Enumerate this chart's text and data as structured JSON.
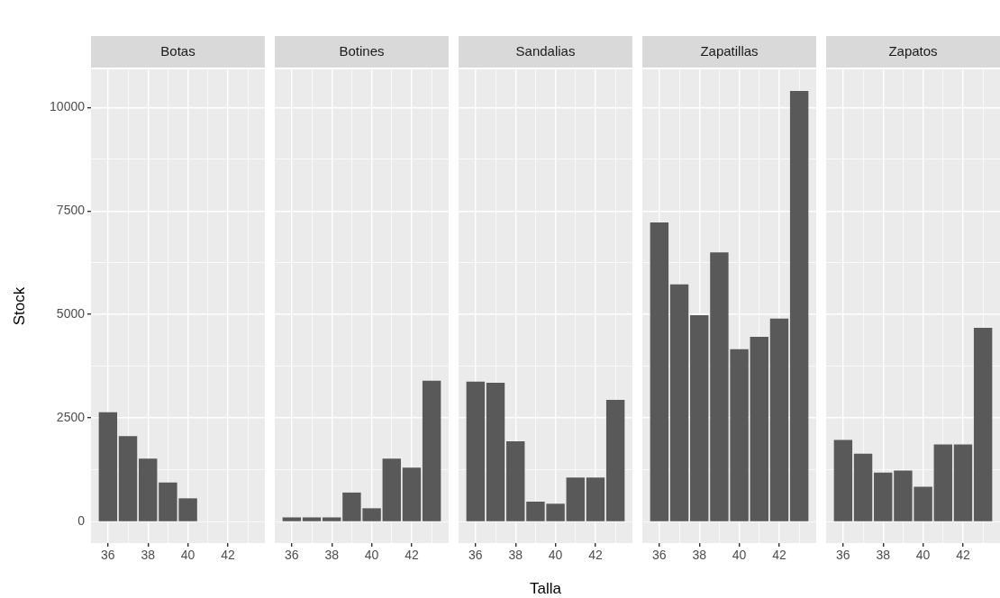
{
  "chart_data": [
    {
      "type": "bar",
      "title": "Botas",
      "ylabel": "Stock",
      "x": [
        36,
        37,
        38,
        39,
        40
      ],
      "values": [
        2640,
        2060,
        1520,
        940,
        560
      ],
      "color": "#595959",
      "xlim": [
        35.15,
        43.85
      ],
      "xticks": [
        36,
        {
          "value": 37,
          "label": null
        },
        38,
        {
          "value": 39,
          "label": null
        },
        40,
        {
          "value": 41,
          "label": null
        },
        42,
        {
          "value": 43,
          "label": null
        }
      ],
      "ylim": [
        -520,
        10920
      ],
      "yticks": [
        0,
        {
          "value": 1250,
          "label": null
        },
        2500,
        {
          "value": 3750,
          "label": null
        },
        5000,
        {
          "value": 6250,
          "label": null
        },
        7500,
        {
          "value": 8750,
          "label": null
        },
        10000
      ],
      "grid": true
    },
    {
      "type": "bar",
      "title": "Botines",
      "x": [
        36,
        37,
        38,
        39,
        40,
        41,
        42,
        43
      ],
      "values": [
        100,
        100,
        100,
        700,
        320,
        1520,
        1300,
        3400
      ],
      "color": "#595959",
      "xlim": [
        35.15,
        43.85
      ],
      "xticks": [
        36,
        {
          "value": 37,
          "label": null
        },
        38,
        {
          "value": 39,
          "label": null
        },
        40,
        {
          "value": 41,
          "label": null
        },
        42,
        {
          "value": 43,
          "label": null
        }
      ],
      "ylim": [
        -520,
        10920
      ],
      "yticks": [
        0,
        {
          "value": 1250,
          "label": null
        },
        2500,
        {
          "value": 3750,
          "label": null
        },
        5000,
        {
          "value": 6250,
          "label": null
        },
        7500,
        {
          "value": 8750,
          "label": null
        },
        10000
      ],
      "grid": true,
      "tick_labels": "x"
    },
    {
      "type": "bar",
      "title": "Sandalias",
      "xlabel": "Talla",
      "x": [
        36,
        37,
        38,
        39,
        40,
        41,
        42,
        43
      ],
      "values": [
        3380,
        3350,
        1940,
        480,
        430,
        1060,
        1060,
        2940
      ],
      "color": "#595959",
      "xlim": [
        35.15,
        43.85
      ],
      "xticks": [
        36,
        {
          "value": 37,
          "label": null
        },
        38,
        {
          "value": 39,
          "label": null
        },
        40,
        {
          "value": 41,
          "label": null
        },
        42,
        {
          "value": 43,
          "label": null
        }
      ],
      "ylim": [
        -520,
        10920
      ],
      "yticks": [
        0,
        {
          "value": 1250,
          "label": null
        },
        2500,
        {
          "value": 3750,
          "label": null
        },
        5000,
        {
          "value": 6250,
          "label": null
        },
        7500,
        {
          "value": 8750,
          "label": null
        },
        10000
      ],
      "grid": true,
      "tick_labels": "x"
    },
    {
      "type": "bar",
      "title": "Zapatillas",
      "x": [
        36,
        37,
        38,
        39,
        40,
        41,
        42,
        43
      ],
      "values": [
        7220,
        5730,
        4980,
        6500,
        4160,
        4460,
        4900,
        10400
      ],
      "color": "#595959",
      "xlim": [
        35.15,
        43.85
      ],
      "xticks": [
        36,
        {
          "value": 37,
          "label": null
        },
        38,
        {
          "value": 39,
          "label": null
        },
        40,
        {
          "value": 41,
          "label": null
        },
        42,
        {
          "value": 43,
          "label": null
        }
      ],
      "ylim": [
        -520,
        10920
      ],
      "yticks": [
        0,
        {
          "value": 1250,
          "label": null
        },
        2500,
        {
          "value": 3750,
          "label": null
        },
        5000,
        {
          "value": 6250,
          "label": null
        },
        7500,
        {
          "value": 8750,
          "label": null
        },
        10000
      ],
      "grid": true,
      "tick_labels": "x"
    },
    {
      "type": "bar",
      "title": "Zapatos",
      "x": [
        36,
        37,
        38,
        39,
        40,
        41,
        42,
        43
      ],
      "values": [
        1970,
        1640,
        1180,
        1230,
        840,
        1860,
        1860,
        4680
      ],
      "color": "#595959",
      "xlim": [
        35.15,
        43.85
      ],
      "xticks": [
        36,
        {
          "value": 37,
          "label": null
        },
        38,
        {
          "value": 39,
          "label": null
        },
        40,
        {
          "value": 41,
          "label": null
        },
        42,
        {
          "value": 43,
          "label": null
        }
      ],
      "ylim": [
        -520,
        10920
      ],
      "yticks": [
        0,
        {
          "value": 1250,
          "label": null
        },
        2500,
        {
          "value": 3750,
          "label": null
        },
        5000,
        {
          "value": 6250,
          "label": null
        },
        7500,
        {
          "value": 8750,
          "label": null
        },
        10000
      ],
      "grid": true,
      "tick_labels": "x"
    }
  ]
}
